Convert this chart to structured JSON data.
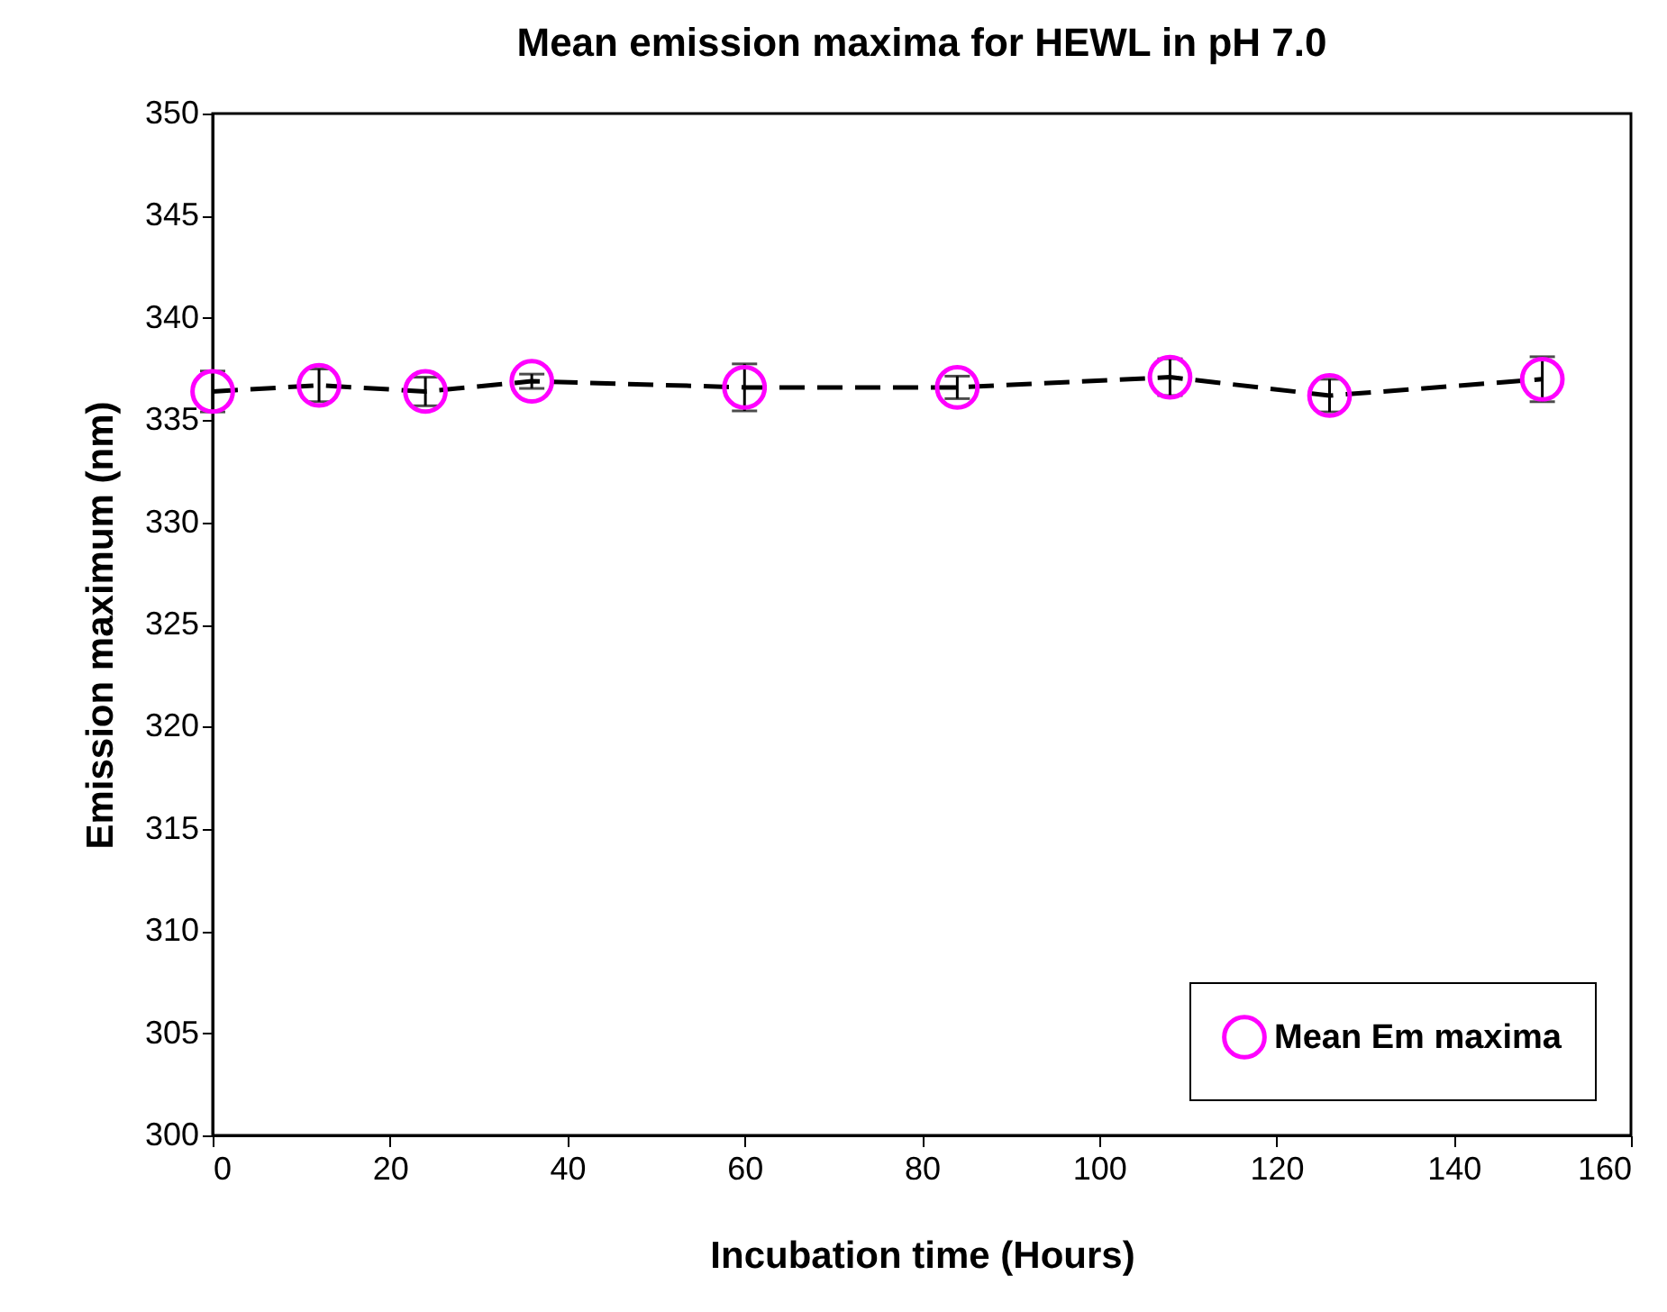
{
  "chart_data": {
    "type": "line",
    "title": "Mean emission maxima for HEWL in pH 7.0",
    "xlabel": "Incubation time (Hours)",
    "ylabel": "Emission maximum (nm)",
    "x": [
      0,
      12,
      24,
      36,
      60,
      84,
      108,
      126,
      150
    ],
    "series": [
      {
        "name": "Mean Em maxima",
        "color": "#ff00ff",
        "values": [
          336.4,
          336.7,
          336.4,
          336.9,
          336.6,
          336.6,
          337.1,
          336.2,
          337.0
        ],
        "errors": [
          1.0,
          0.8,
          0.7,
          0.35,
          1.15,
          0.55,
          0.9,
          0.8,
          1.1
        ]
      }
    ],
    "xlim": [
      0,
      160
    ],
    "xticks": [
      0,
      20,
      40,
      60,
      80,
      100,
      120,
      140,
      160
    ],
    "ylim": [
      300,
      350
    ],
    "yticks": [
      300,
      305,
      310,
      315,
      320,
      325,
      330,
      335,
      340,
      345,
      350
    ],
    "legend": "bottom right",
    "marker": "circle",
    "line_style": "dashed"
  }
}
